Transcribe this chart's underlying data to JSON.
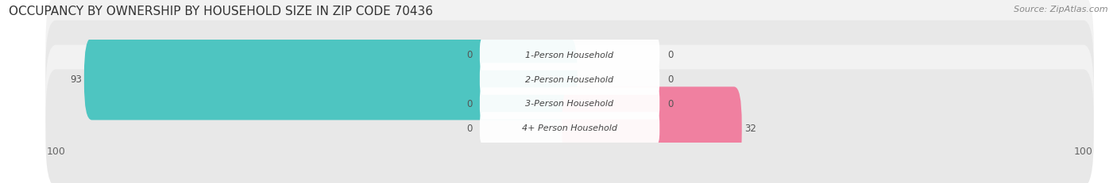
{
  "title": "OCCUPANCY BY OWNERSHIP BY HOUSEHOLD SIZE IN ZIP CODE 70436",
  "source": "Source: ZipAtlas.com",
  "categories": [
    "1-Person Household",
    "2-Person Household",
    "3-Person Household",
    "4+ Person Household"
  ],
  "owner_values": [
    0,
    93,
    0,
    0
  ],
  "renter_values": [
    0,
    0,
    0,
    32
  ],
  "owner_color": "#4ec5c1",
  "renter_color": "#f080a0",
  "row_bg_color_odd": "#f2f2f2",
  "row_bg_color_even": "#e8e8e8",
  "x_min": -100,
  "x_max": 100,
  "x_tick_labels": [
    "100",
    "100"
  ],
  "title_fontsize": 11,
  "axis_fontsize": 9,
  "legend_fontsize": 9,
  "value_fontsize": 8.5,
  "cat_fontsize": 8,
  "figsize": [
    14.06,
    2.32
  ],
  "dpi": 100
}
